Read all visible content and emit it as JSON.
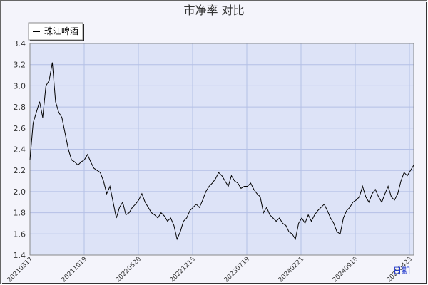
{
  "chart_data": {
    "type": "line",
    "title": "市净率  对比",
    "x_label": "日期",
    "xticks": [
      "20210317",
      "20211019",
      "20220520",
      "20221215",
      "20230719",
      "20240221",
      "20240918",
      "20250423"
    ],
    "series": [
      {
        "name": "珠江啤酒",
        "color": "#000000",
        "values": [
          2.3,
          2.65,
          2.75,
          2.85,
          2.7,
          3.0,
          3.05,
          3.22,
          2.85,
          2.75,
          2.7,
          2.55,
          2.4,
          2.3,
          2.28,
          2.25,
          2.28,
          2.3,
          2.35,
          2.28,
          2.22,
          2.2,
          2.18,
          2.1,
          1.98,
          2.05,
          1.9,
          1.75,
          1.85,
          1.9,
          1.78,
          1.8,
          1.85,
          1.88,
          1.92,
          1.98,
          1.9,
          1.85,
          1.8,
          1.78,
          1.75,
          1.8,
          1.77,
          1.72,
          1.75,
          1.68,
          1.55,
          1.62,
          1.72,
          1.75,
          1.82,
          1.85,
          1.88,
          1.85,
          1.92,
          2.0,
          2.05,
          2.08,
          2.12,
          2.18,
          2.15,
          2.1,
          2.05,
          2.15,
          2.1,
          2.08,
          2.03,
          2.05,
          2.05,
          2.08,
          2.02,
          1.98,
          1.95,
          1.8,
          1.85,
          1.78,
          1.75,
          1.72,
          1.75,
          1.7,
          1.68,
          1.62,
          1.6,
          1.55,
          1.7,
          1.75,
          1.7,
          1.78,
          1.72,
          1.78,
          1.82,
          1.85,
          1.88,
          1.82,
          1.75,
          1.7,
          1.62,
          1.6,
          1.75,
          1.82,
          1.85,
          1.9,
          1.92,
          1.95,
          2.05,
          1.95,
          1.9,
          1.98,
          2.02,
          1.95,
          1.9,
          1.98,
          2.05,
          1.95,
          1.92,
          1.98,
          2.1,
          2.18,
          2.15,
          2.2,
          2.25
        ]
      }
    ],
    "ylim": [
      1.4,
      3.4
    ],
    "yticks": [
      {
        "value": 1.4,
        "label": "1.4"
      },
      {
        "value": 1.6,
        "label": "1.6"
      },
      {
        "value": 1.8,
        "label": "1.8"
      },
      {
        "value": 2.0,
        "label": "2.0"
      },
      {
        "value": 2.2,
        "label": "2.2"
      },
      {
        "value": 2.4,
        "label": "2.4"
      },
      {
        "value": 2.6,
        "label": "2.6"
      },
      {
        "value": 2.8,
        "label": "2.8"
      },
      {
        "value": 3.0,
        "label": "3.0"
      },
      {
        "value": 3.2,
        "label": "3.2"
      },
      {
        "value": 3.4,
        "label": "3.4"
      }
    ],
    "grid": true
  }
}
